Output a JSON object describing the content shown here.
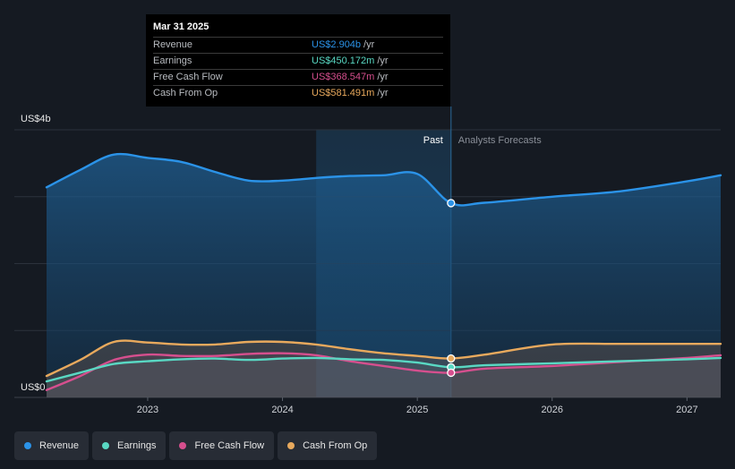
{
  "chart_data": {
    "type": "area",
    "y_top_label": "US$4b",
    "y_bottom_label": "US$0",
    "ylim": [
      0,
      4000
    ],
    "xlim": [
      2022.23,
      2027.25
    ],
    "x_ticks": [
      {
        "label": "2023",
        "value": 2023.0
      },
      {
        "label": "2024",
        "value": 2024.0
      },
      {
        "label": "2025",
        "value": 2025.0
      },
      {
        "label": "2026",
        "value": 2026.0
      },
      {
        "label": "2027",
        "value": 2027.0
      }
    ],
    "past_label": "Past",
    "forecast_label": "Analysts Forecasts",
    "highlight_start": 2024.25,
    "divider_x": 2025.25,
    "series": [
      {
        "name": "Revenue",
        "color": "#2b93e8",
        "x": [
          2022.25,
          2022.5,
          2022.75,
          2023.0,
          2023.25,
          2023.5,
          2023.75,
          2024.0,
          2024.25,
          2024.5,
          2024.75,
          2025.0,
          2025.25
        ],
        "y": [
          3140,
          3400,
          3630,
          3580,
          3520,
          3370,
          3240,
          3240,
          3280,
          3310,
          3320,
          3340,
          2904
        ],
        "fx": [
          2025.25,
          2025.5,
          2026.0,
          2026.5,
          2027.0,
          2027.25
        ],
        "fy": [
          2904,
          2910,
          3000,
          3080,
          3230,
          3320
        ]
      },
      {
        "name": "Earnings",
        "color": "#59d8c3",
        "x": [
          2022.25,
          2022.5,
          2022.75,
          2023.0,
          2023.25,
          2023.5,
          2023.75,
          2024.0,
          2024.25,
          2024.5,
          2024.75,
          2025.0,
          2025.25
        ],
        "y": [
          240,
          370,
          500,
          540,
          570,
          580,
          560,
          580,
          590,
          570,
          560,
          520,
          450.172
        ],
        "fx": [
          2025.25,
          2025.5,
          2026.0,
          2026.5,
          2027.0,
          2027.25
        ],
        "fy": [
          450.172,
          480,
          510,
          540,
          570,
          590
        ]
      },
      {
        "name": "Free Cash Flow",
        "color": "#d64f8e",
        "x": [
          2022.25,
          2022.5,
          2022.75,
          2023.0,
          2023.25,
          2023.5,
          2023.75,
          2024.0,
          2024.25,
          2024.5,
          2024.75,
          2025.0,
          2025.25
        ],
        "y": [
          110,
          320,
          560,
          640,
          620,
          620,
          650,
          660,
          630,
          540,
          470,
          400,
          368.547
        ],
        "fx": [
          2025.25,
          2025.5,
          2026.0,
          2026.5,
          2027.0,
          2027.25
        ],
        "fy": [
          368.547,
          430,
          470,
          530,
          590,
          630
        ]
      },
      {
        "name": "Cash From Op",
        "color": "#e8a95d",
        "x": [
          2022.25,
          2022.5,
          2022.75,
          2023.0,
          2023.25,
          2023.5,
          2023.75,
          2024.0,
          2024.25,
          2024.5,
          2024.75,
          2025.0,
          2025.25
        ],
        "y": [
          320,
          560,
          830,
          820,
          790,
          790,
          830,
          830,
          790,
          720,
          660,
          620,
          581.491
        ],
        "fx": [
          2025.25,
          2025.5,
          2026.0,
          2026.5,
          2027.0,
          2027.25
        ],
        "fy": [
          581.491,
          640,
          790,
          800,
          800,
          800
        ]
      }
    ]
  },
  "tooltip": {
    "date": "Mar 31 2025",
    "rows": [
      {
        "label": "Revenue",
        "value": "US$2.904b",
        "unit": "/yr",
        "color": "#2b93e8"
      },
      {
        "label": "Earnings",
        "value": "US$450.172m",
        "unit": "/yr",
        "color": "#59d8c3"
      },
      {
        "label": "Free Cash Flow",
        "value": "US$368.547m",
        "unit": "/yr",
        "color": "#d64f8e"
      },
      {
        "label": "Cash From Op",
        "value": "US$581.491m",
        "unit": "/yr",
        "color": "#e8a95d"
      }
    ]
  },
  "legend": [
    {
      "label": "Revenue",
      "color": "#2b93e8"
    },
    {
      "label": "Earnings",
      "color": "#59d8c3"
    },
    {
      "label": "Free Cash Flow",
      "color": "#d64f8e"
    },
    {
      "label": "Cash From Op",
      "color": "#e8a95d"
    }
  ]
}
